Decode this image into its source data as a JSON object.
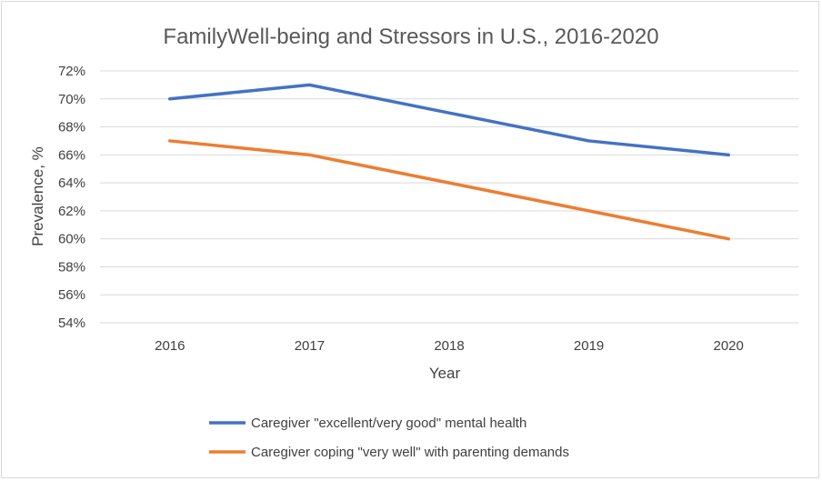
{
  "chart_data": {
    "type": "line",
    "title": "FamilyWell-being and Stressors in U.S., 2016-2020",
    "xlabel": "Year",
    "ylabel": "Prevalence, %",
    "categories": [
      "2016",
      "2017",
      "2018",
      "2019",
      "2020"
    ],
    "ylim": [
      54,
      72
    ],
    "yticks": [
      54,
      56,
      58,
      60,
      62,
      64,
      66,
      68,
      70,
      72
    ],
    "ytick_labels": [
      "54%",
      "56%",
      "58%",
      "60%",
      "62%",
      "64%",
      "66%",
      "68%",
      "70%",
      "72%"
    ],
    "grid": true,
    "legend_position": "bottom",
    "series": [
      {
        "name": "Caregiver \"excellent/very good\" mental health",
        "values": [
          70,
          71,
          69,
          67,
          66
        ],
        "color": "#4472c4"
      },
      {
        "name": "Caregiver coping \"very well\" with parenting demands",
        "values": [
          67,
          66,
          64,
          62,
          60
        ],
        "color": "#ed7d31"
      }
    ]
  }
}
